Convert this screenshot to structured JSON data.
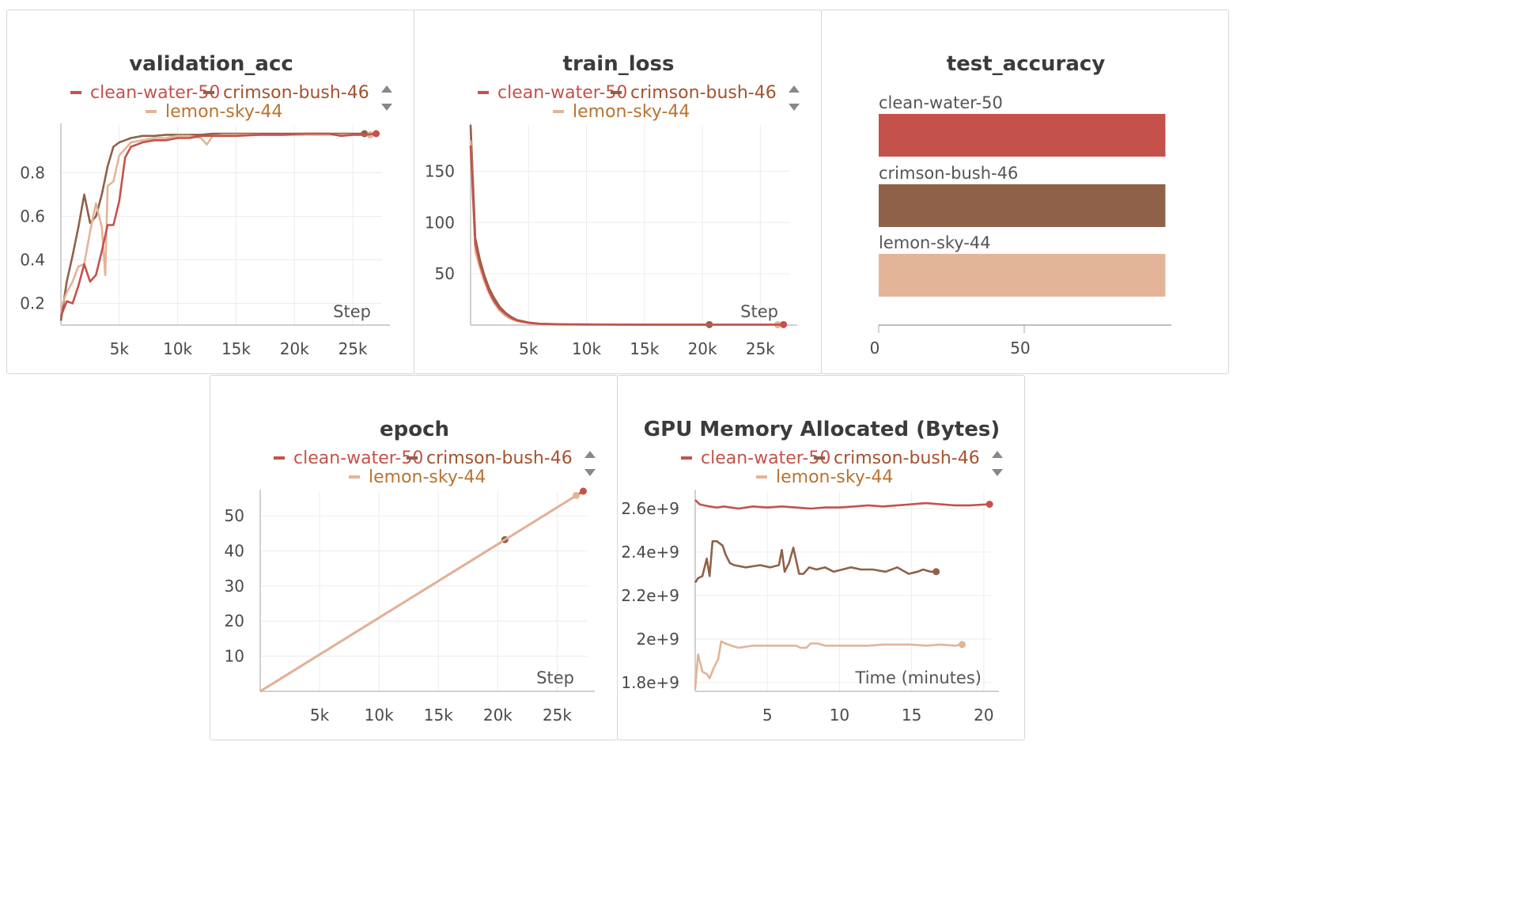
{
  "colors": {
    "clean-water-50": "#c4524b",
    "crimson-bush-46": "#8f6149",
    "lemon-sky-44": "#e3b497"
  },
  "icons": [
    "arrow-up-icon",
    "arrow-down-icon"
  ],
  "chart_data": [
    {
      "id": "validation_acc",
      "type": "line",
      "title": "validation_acc",
      "xlabel": "Step",
      "xlim": [
        0,
        27500
      ],
      "ylim": [
        0.1,
        1.02
      ],
      "xticks": [
        5000,
        10000,
        15000,
        20000,
        25000
      ],
      "xtick_labels": [
        "5k",
        "10k",
        "15k",
        "20k",
        "25k"
      ],
      "yticks": [
        0.2,
        0.4,
        0.6,
        0.8
      ],
      "ytick_labels": [
        "0.2",
        "0.4",
        "0.6",
        "0.8"
      ],
      "legend": [
        "clean-water-50",
        "crimson-bush-46",
        "lemon-sky-44"
      ],
      "series": [
        {
          "name": "clean-water-50",
          "x": [
            0,
            500,
            1000,
            1500,
            2000,
            2500,
            3000,
            3500,
            4000,
            4500,
            5000,
            5500,
            6000,
            6500,
            7000,
            8000,
            9000,
            10000,
            11000,
            12000,
            13000,
            14000,
            15000,
            17000,
            19000,
            21000,
            23000,
            24000,
            25000,
            26000,
            27000
          ],
          "y": [
            0.14,
            0.21,
            0.2,
            0.28,
            0.38,
            0.3,
            0.33,
            0.44,
            0.56,
            0.56,
            0.67,
            0.87,
            0.92,
            0.93,
            0.94,
            0.95,
            0.95,
            0.96,
            0.96,
            0.97,
            0.97,
            0.97,
            0.97,
            0.975,
            0.975,
            0.98,
            0.98,
            0.97,
            0.975,
            0.975,
            0.98
          ]
        },
        {
          "name": "crimson-bush-46",
          "x": [
            0,
            500,
            1000,
            1500,
            2000,
            2500,
            3000,
            3500,
            4000,
            4500,
            5000,
            5500,
            6000,
            7000,
            8000,
            9000,
            10000,
            11000,
            12000,
            13000,
            15000,
            18000,
            20500,
            23000,
            26000
          ],
          "y": [
            0.12,
            0.3,
            0.42,
            0.55,
            0.7,
            0.57,
            0.6,
            0.7,
            0.83,
            0.92,
            0.94,
            0.95,
            0.96,
            0.97,
            0.97,
            0.975,
            0.975,
            0.975,
            0.975,
            0.98,
            0.98,
            0.98,
            0.98,
            0.98,
            0.98
          ]
        },
        {
          "name": "lemon-sky-44",
          "x": [
            0,
            500,
            1000,
            1500,
            2000,
            2500,
            3000,
            3500,
            3800,
            4000,
            4500,
            5000,
            5500,
            6000,
            7000,
            8000,
            9000,
            10000,
            11000,
            12000,
            12500,
            13000,
            14000,
            16000,
            18000,
            20000,
            22000,
            24000,
            26500
          ],
          "y": [
            0.18,
            0.25,
            0.3,
            0.37,
            0.38,
            0.53,
            0.66,
            0.55,
            0.33,
            0.74,
            0.76,
            0.88,
            0.91,
            0.94,
            0.95,
            0.96,
            0.96,
            0.97,
            0.97,
            0.96,
            0.93,
            0.97,
            0.975,
            0.975,
            0.975,
            0.975,
            0.975,
            0.975,
            0.975
          ]
        }
      ]
    },
    {
      "id": "train_loss",
      "type": "line",
      "title": "train_loss",
      "xlabel": "Step",
      "xlim": [
        0,
        27500
      ],
      "ylim": [
        0,
        195
      ],
      "xticks": [
        5000,
        10000,
        15000,
        20000,
        25000
      ],
      "xtick_labels": [
        "5k",
        "10k",
        "15k",
        "20k",
        "25k"
      ],
      "yticks": [
        50,
        100,
        150
      ],
      "ytick_labels": [
        "50",
        "100",
        "150"
      ],
      "legend": [
        "clean-water-50",
        "crimson-bush-46",
        "lemon-sky-44"
      ],
      "series": [
        {
          "name": "clean-water-50",
          "x": [
            0,
            400,
            800,
            1200,
            1600,
            2000,
            2500,
            3000,
            3500,
            4000,
            5000,
            6000,
            8000,
            10000,
            15000,
            20000,
            25000,
            27000
          ],
          "y": [
            175,
            80,
            60,
            45,
            33,
            24,
            16,
            11,
            7,
            4.5,
            2.2,
            1.2,
            0.8,
            0.6,
            0.5,
            0.5,
            0.5,
            0.5
          ]
        },
        {
          "name": "crimson-bush-46",
          "x": [
            0,
            400,
            800,
            1200,
            1600,
            2000,
            2500,
            3000,
            3500,
            4000,
            5000,
            6000,
            8000,
            10000,
            15000,
            20600
          ],
          "y": [
            195,
            85,
            64,
            48,
            36,
            27,
            18,
            12,
            8,
            5,
            2.5,
            1.3,
            0.8,
            0.6,
            0.5,
            0.5
          ]
        },
        {
          "name": "lemon-sky-44",
          "x": [
            0,
            400,
            800,
            1200,
            1600,
            2000,
            2500,
            3000,
            3500,
            4000,
            5000,
            6000,
            8000,
            10000,
            15000,
            20000,
            26500
          ],
          "y": [
            180,
            72,
            56,
            42,
            31,
            22,
            14,
            9,
            6,
            4,
            2,
            1.1,
            0.7,
            0.5,
            0.4,
            0.4,
            0.4
          ]
        }
      ]
    },
    {
      "id": "test_accuracy",
      "type": "bar",
      "title": "test_accuracy",
      "orientation": "horizontal",
      "xlim": [
        0,
        100
      ],
      "xticks": [
        0,
        50
      ],
      "xtick_labels": [
        "0",
        "50"
      ],
      "categories": [
        "clean-water-50",
        "crimson-bush-46",
        "lemon-sky-44"
      ],
      "values": [
        98.5,
        98.5,
        98.5
      ]
    },
    {
      "id": "epoch",
      "type": "line",
      "title": "epoch",
      "xlabel": "Step",
      "xlim": [
        0,
        27500
      ],
      "ylim": [
        0,
        57
      ],
      "xticks": [
        5000,
        10000,
        15000,
        20000,
        25000
      ],
      "xtick_labels": [
        "5k",
        "10k",
        "15k",
        "20k",
        "25k"
      ],
      "yticks": [
        10,
        20,
        30,
        40,
        50
      ],
      "ytick_labels": [
        "10",
        "20",
        "30",
        "40",
        "50"
      ],
      "legend": [
        "clean-water-50",
        "crimson-bush-46",
        "lemon-sky-44"
      ],
      "series": [
        {
          "name": "clean-water-50",
          "x": [
            0,
            27200
          ],
          "y": [
            0,
            57
          ]
        },
        {
          "name": "crimson-bush-46",
          "x": [
            0,
            20600
          ],
          "y": [
            0,
            43.2
          ]
        },
        {
          "name": "lemon-sky-44",
          "x": [
            0,
            26600
          ],
          "y": [
            0,
            55.8
          ]
        }
      ]
    },
    {
      "id": "gpu_memory",
      "type": "line",
      "title": "GPU Memory Allocated (Bytes)",
      "xlabel": "Time (minutes)",
      "xlim": [
        0,
        20.5
      ],
      "ylim": [
        1760000000.0,
        2680000000.0
      ],
      "xticks": [
        5,
        10,
        15,
        20
      ],
      "xtick_labels": [
        "5",
        "10",
        "15",
        "20"
      ],
      "yticks": [
        1800000000.0,
        2000000000.0,
        2200000000.0,
        2400000000.0,
        2600000000.0
      ],
      "ytick_labels": [
        "1.8e+9",
        "2e+9",
        "2.2e+9",
        "2.4e+9",
        "2.6e+9"
      ],
      "legend": [
        "clean-water-50",
        "crimson-bush-46",
        "lemon-sky-44"
      ],
      "series": [
        {
          "name": "clean-water-50",
          "x": [
            0,
            0.3,
            0.6,
            1,
            1.5,
            2,
            3,
            4,
            5,
            6,
            7,
            8,
            9,
            10,
            11,
            12,
            13,
            14,
            15,
            16,
            17,
            18,
            19,
            20.4
          ],
          "y": [
            2640000000.0,
            2620000000.0,
            2615000000.0,
            2610000000.0,
            2605000000.0,
            2610000000.0,
            2600000000.0,
            2610000000.0,
            2605000000.0,
            2610000000.0,
            2605000000.0,
            2600000000.0,
            2605000000.0,
            2605000000.0,
            2610000000.0,
            2615000000.0,
            2610000000.0,
            2615000000.0,
            2620000000.0,
            2625000000.0,
            2620000000.0,
            2615000000.0,
            2615000000.0,
            2620000000.0
          ]
        },
        {
          "name": "crimson-bush-46",
          "x": [
            0,
            0.2,
            0.5,
            0.8,
            1.0,
            1.2,
            1.5,
            1.9,
            2.1,
            2.4,
            2.7,
            3.5,
            4.5,
            5.2,
            5.8,
            6.0,
            6.2,
            6.5,
            6.8,
            7.2,
            7.5,
            7.9,
            8.4,
            9,
            9.6,
            10.2,
            10.8,
            11.5,
            12.3,
            13.2,
            14,
            14.8,
            15.4,
            15.8,
            16.3,
            16.7
          ],
          "y": [
            2260000000.0,
            2280000000.0,
            2290000000.0,
            2370000000.0,
            2290000000.0,
            2450000000.0,
            2450000000.0,
            2430000000.0,
            2390000000.0,
            2350000000.0,
            2340000000.0,
            2330000000.0,
            2340000000.0,
            2330000000.0,
            2340000000.0,
            2410000000.0,
            2310000000.0,
            2350000000.0,
            2420000000.0,
            2300000000.0,
            2300000000.0,
            2330000000.0,
            2320000000.0,
            2330000000.0,
            2310000000.0,
            2320000000.0,
            2330000000.0,
            2320000000.0,
            2320000000.0,
            2310000000.0,
            2330000000.0,
            2300000000.0,
            2310000000.0,
            2320000000.0,
            2310000000.0,
            2310000000.0
          ]
        },
        {
          "name": "lemon-sky-44",
          "x": [
            0,
            0.2,
            0.5,
            0.8,
            1.0,
            1.3,
            1.6,
            1.8,
            2.1,
            2.5,
            3,
            4,
            5,
            6,
            7,
            7.3,
            7.7,
            8,
            8.5,
            9,
            10,
            11,
            12,
            13,
            14,
            15,
            16,
            17,
            18,
            18.5
          ],
          "y": [
            1770000000.0,
            1930000000.0,
            1850000000.0,
            1840000000.0,
            1820000000.0,
            1870000000.0,
            1910000000.0,
            1990000000.0,
            1980000000.0,
            1970000000.0,
            1960000000.0,
            1970000000.0,
            1970000000.0,
            1970000000.0,
            1970000000.0,
            1960000000.0,
            1960000000.0,
            1980000000.0,
            1980000000.0,
            1970000000.0,
            1970000000.0,
            1970000000.0,
            1970000000.0,
            1975000000.0,
            1975000000.0,
            1975000000.0,
            1970000000.0,
            1975000000.0,
            1970000000.0,
            1975000000.0
          ]
        }
      ]
    }
  ]
}
